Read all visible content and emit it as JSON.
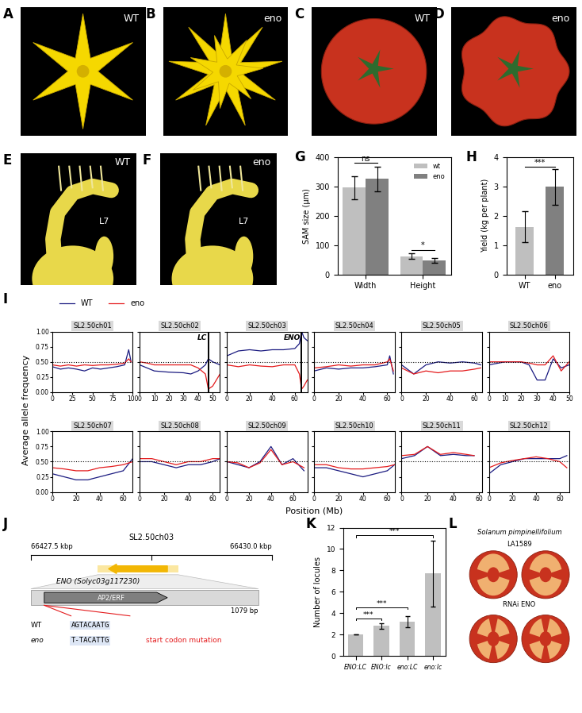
{
  "photos": {
    "flowers": [
      {
        "panel_label": "A",
        "label": "WT"
      },
      {
        "panel_label": "B",
        "label": "eno"
      }
    ],
    "fruits": [
      {
        "panel_label": "C",
        "label": "WT"
      },
      {
        "panel_label": "D",
        "label": "eno"
      }
    ],
    "meristems": [
      {
        "panel_label": "E",
        "label": "WT",
        "leaf": "L7"
      },
      {
        "panel_label": "F",
        "label": "eno",
        "leaf": "L7"
      }
    ]
  },
  "chart_data": [
    {
      "type": "bar",
      "panel_label": "G",
      "categories": [
        "Width",
        "Height"
      ],
      "ylabel": "SAM size (μm)",
      "ylim": [
        0,
        400
      ],
      "yticks": [
        0,
        100,
        200,
        300,
        400
      ],
      "legend": "upper right",
      "series": [
        {
          "name": "wt",
          "color": "#bfbfbf",
          "values": [
            295,
            62
          ],
          "errors": [
            38,
            10
          ]
        },
        {
          "name": "eno",
          "color": "#808080",
          "values": [
            325,
            48
          ],
          "errors": [
            42,
            8
          ]
        }
      ],
      "significance": [
        {
          "category": "Width",
          "label": "ns"
        },
        {
          "category": "Height",
          "label": "*"
        }
      ]
    },
    {
      "type": "bar",
      "panel_label": "H",
      "categories": [
        "WT",
        "eno"
      ],
      "values": [
        1.62,
        2.98
      ],
      "errors": [
        0.52,
        0.6
      ],
      "colors": [
        "#bfbfbf",
        "#808080"
      ],
      "ylabel": "Yield (kg per plant)",
      "ylim": [
        0,
        4
      ],
      "yticks": [
        0,
        1,
        2,
        3,
        4
      ],
      "comparisons": [
        {
          "from": "WT",
          "to": "eno",
          "label": "***"
        }
      ]
    },
    {
      "type": "line",
      "panel_label": "I",
      "ylabel": "Average allele frequency",
      "xlabel": "Position (Mb)",
      "legend": "upper left",
      "reference_line": 0.5,
      "ylim": [
        0,
        1
      ],
      "yticks": [
        {
          "value": 0,
          "label": "0.00"
        },
        {
          "value": 0.25,
          "label": "0.25"
        },
        {
          "value": 0.5,
          "label": "0.50"
        },
        {
          "value": 0.75,
          "label": "0.75"
        },
        {
          "value": 1,
          "label": "1.00"
        }
      ],
      "subplots": [
        {
          "title": "SL2.50ch01",
          "xlim": [
            0,
            100
          ],
          "xticks": [
            0,
            25,
            50,
            75,
            100
          ],
          "x": [
            0,
            10,
            20,
            30,
            40,
            50,
            60,
            70,
            80,
            90,
            95,
            98
          ],
          "series": [
            {
              "name": "WT",
              "color": "#1a1a80",
              "values": [
                0.42,
                0.38,
                0.4,
                0.38,
                0.35,
                0.4,
                0.38,
                0.4,
                0.42,
                0.45,
                0.7,
                0.5
              ]
            },
            {
              "name": "eno",
              "color": "#e41a1c",
              "values": [
                0.45,
                0.43,
                0.45,
                0.43,
                0.45,
                0.44,
                0.45,
                0.45,
                0.46,
                0.48,
                0.55,
                0.5
              ]
            }
          ]
        },
        {
          "title": "SL2.50ch02",
          "xlim": [
            0,
            55
          ],
          "xticks": [
            0,
            10,
            20,
            30,
            40,
            50
          ],
          "tick_labels": "x",
          "x": [
            0,
            5,
            10,
            20,
            30,
            35,
            40,
            45,
            47,
            50,
            55
          ],
          "series": [
            {
              "name": "WT",
              "color": "#1a1a80",
              "values": [
                0.45,
                0.4,
                0.35,
                0.33,
                0.32,
                0.3,
                0.35,
                0.45,
                0.55,
                0.5,
                0.45
              ]
            },
            {
              "name": "eno",
              "color": "#e41a1c",
              "values": [
                0.5,
                0.48,
                0.45,
                0.45,
                0.45,
                0.45,
                0.4,
                0.3,
                0.05,
                0.1,
                0.3
              ]
            }
          ],
          "markers": [
            {
              "x": 47,
              "label": "LC"
            }
          ]
        },
        {
          "title": "SL2.50ch03",
          "xlim": [
            0,
            71
          ],
          "xticks": [
            0,
            20,
            40,
            60
          ],
          "tick_labels": "x",
          "x": [
            0,
            10,
            20,
            30,
            40,
            50,
            60,
            64,
            66,
            68,
            71
          ],
          "series": [
            {
              "name": "WT",
              "color": "#1a1a80",
              "values": [
                0.6,
                0.68,
                0.7,
                0.68,
                0.7,
                0.7,
                0.72,
                0.8,
                1.0,
                0.9,
                0.85
              ]
            },
            {
              "name": "eno",
              "color": "#e41a1c",
              "values": [
                0.45,
                0.42,
                0.45,
                0.43,
                0.42,
                0.45,
                0.45,
                0.3,
                0.05,
                0.1,
                0.2
              ]
            }
          ],
          "markers": [
            {
              "x": 66,
              "label": "ENO"
            }
          ]
        },
        {
          "title": "SL2.50ch04",
          "xlim": [
            0,
            66
          ],
          "xticks": [
            0,
            20,
            40,
            60
          ],
          "tick_labels": "x",
          "x": [
            0,
            10,
            20,
            30,
            40,
            50,
            60,
            62,
            65
          ],
          "series": [
            {
              "name": "WT",
              "color": "#1a1a80",
              "values": [
                0.35,
                0.4,
                0.38,
                0.4,
                0.4,
                0.42,
                0.45,
                0.6,
                0.3
              ]
            },
            {
              "name": "eno",
              "color": "#e41a1c",
              "values": [
                0.4,
                0.42,
                0.45,
                0.43,
                0.45,
                0.45,
                0.5,
                0.55,
                0.35
              ]
            }
          ]
        },
        {
          "title": "SL2.50ch05",
          "xlim": [
            0,
            66
          ],
          "xticks": [
            0,
            20,
            40,
            60
          ],
          "tick_labels": "x",
          "x": [
            0,
            10,
            20,
            30,
            40,
            50,
            60,
            65
          ],
          "series": [
            {
              "name": "WT",
              "color": "#1a1a80",
              "values": [
                0.45,
                0.3,
                0.45,
                0.5,
                0.48,
                0.5,
                0.48,
                0.45
              ]
            },
            {
              "name": "eno",
              "color": "#e41a1c",
              "values": [
                0.4,
                0.3,
                0.35,
                0.32,
                0.35,
                0.35,
                0.38,
                0.4
              ]
            }
          ]
        },
        {
          "title": "SL2.50ch06",
          "xlim": [
            0,
            50
          ],
          "xticks": [
            0,
            10,
            20,
            30,
            40,
            50
          ],
          "tick_labels": "x",
          "x": [
            0,
            10,
            20,
            25,
            30,
            35,
            40,
            45,
            50
          ],
          "series": [
            {
              "name": "WT",
              "color": "#1a1a80",
              "values": [
                0.45,
                0.5,
                0.5,
                0.45,
                0.2,
                0.2,
                0.55,
                0.4,
                0.45
              ]
            },
            {
              "name": "eno",
              "color": "#e41a1c",
              "values": [
                0.5,
                0.5,
                0.5,
                0.48,
                0.45,
                0.45,
                0.6,
                0.35,
                0.5
              ]
            }
          ]
        },
        {
          "title": "SL2.50ch07",
          "xlim": [
            0,
            68
          ],
          "xticks": [
            0,
            20,
            40,
            60
          ],
          "x": [
            0,
            10,
            20,
            30,
            40,
            50,
            60,
            68
          ],
          "series": [
            {
              "name": "WT",
              "color": "#1a1a80",
              "values": [
                0.3,
                0.25,
                0.2,
                0.2,
                0.25,
                0.3,
                0.35,
                0.55
              ]
            },
            {
              "name": "eno",
              "color": "#e41a1c",
              "values": [
                0.4,
                0.38,
                0.35,
                0.35,
                0.4,
                0.42,
                0.45,
                0.5
              ]
            }
          ]
        },
        {
          "title": "SL2.50ch08",
          "xlim": [
            0,
            66
          ],
          "xticks": [
            0,
            20,
            40,
            60
          ],
          "tick_labels": "x",
          "x": [
            0,
            10,
            20,
            30,
            40,
            50,
            60,
            66
          ],
          "series": [
            {
              "name": "WT",
              "color": "#1a1a80",
              "values": [
                0.5,
                0.5,
                0.45,
                0.4,
                0.45,
                0.45,
                0.5,
                0.55
              ]
            },
            {
              "name": "eno",
              "color": "#e41a1c",
              "values": [
                0.55,
                0.55,
                0.5,
                0.45,
                0.5,
                0.5,
                0.55,
                0.55
              ]
            }
          ]
        },
        {
          "title": "SL2.50ch09",
          "xlim": [
            0,
            73
          ],
          "xticks": [
            0,
            20,
            40,
            60
          ],
          "tick_labels": "x",
          "x": [
            0,
            10,
            20,
            30,
            40,
            50,
            60,
            70
          ],
          "series": [
            {
              "name": "WT",
              "color": "#1a1a80",
              "values": [
                0.5,
                0.45,
                0.4,
                0.5,
                0.75,
                0.45,
                0.55,
                0.35
              ]
            },
            {
              "name": "eno",
              "color": "#e41a1c",
              "values": [
                0.5,
                0.48,
                0.4,
                0.48,
                0.7,
                0.45,
                0.5,
                0.4
              ]
            }
          ]
        },
        {
          "title": "SL2.50ch10",
          "xlim": [
            0,
            66
          ],
          "xticks": [
            0,
            20,
            40,
            60
          ],
          "tick_labels": "x",
          "x": [
            0,
            10,
            20,
            30,
            40,
            50,
            60,
            66
          ],
          "series": [
            {
              "name": "WT",
              "color": "#1a1a80",
              "values": [
                0.4,
                0.4,
                0.35,
                0.3,
                0.25,
                0.3,
                0.35,
                0.45
              ]
            },
            {
              "name": "eno",
              "color": "#e41a1c",
              "values": [
                0.45,
                0.45,
                0.4,
                0.38,
                0.38,
                0.4,
                0.42,
                0.45
              ]
            }
          ]
        },
        {
          "title": "SL2.50ch11",
          "xlim": [
            0,
            62
          ],
          "xticks": [
            0,
            20,
            40,
            60
          ],
          "tick_labels": "x",
          "x": [
            0,
            10,
            20,
            30,
            40,
            50,
            56
          ],
          "series": [
            {
              "name": "WT",
              "color": "#1a1a80",
              "values": [
                0.55,
                0.6,
                0.75,
                0.6,
                0.62,
                0.6,
                0.6
              ]
            },
            {
              "name": "eno",
              "color": "#e41a1c",
              "values": [
                0.6,
                0.62,
                0.75,
                0.62,
                0.65,
                0.62,
                0.6
              ]
            }
          ]
        },
        {
          "title": "SL2.50ch12",
          "xlim": [
            0,
            68
          ],
          "xticks": [
            0,
            20,
            40,
            60
          ],
          "tick_labels": "x",
          "x": [
            0,
            10,
            20,
            30,
            40,
            50,
            60,
            66
          ],
          "series": [
            {
              "name": "WT",
              "color": "#1a1a80",
              "values": [
                0.3,
                0.45,
                0.5,
                0.55,
                0.55,
                0.55,
                0.55,
                0.6
              ]
            },
            {
              "name": "eno",
              "color": "#e41a1c",
              "values": [
                0.4,
                0.48,
                0.52,
                0.55,
                0.58,
                0.55,
                0.5,
                0.4
              ]
            }
          ]
        }
      ]
    },
    {
      "type": "bar",
      "panel_label": "K",
      "categories": [
        "ENO:LC",
        "ENO:lc",
        "eno:LC",
        "eno:lc"
      ],
      "values": [
        2.0,
        2.8,
        3.2,
        7.7
      ],
      "errors": [
        0,
        0.25,
        0.5,
        3.1
      ],
      "color": "#bfbfbf",
      "ylabel": "Number of locules",
      "ylim": [
        0,
        12
      ],
      "yticks": [
        0,
        2,
        4,
        6,
        8,
        10,
        12
      ],
      "comparisons": [
        {
          "from": "ENO:LC",
          "to": "ENO:lc",
          "label": "***"
        },
        {
          "from": "ENO:LC",
          "to": "eno:LC",
          "label": "***"
        },
        {
          "from": "ENO:LC",
          "to": "eno:lc",
          "label": "***"
        }
      ]
    }
  ],
  "diagram": {
    "panel_label": "J",
    "title": "SL2.50ch03",
    "start": "66427.5 kbp",
    "end": "66430.0 kbp",
    "gene": "ENO (Solyc03g117230)",
    "domain": "AP2/ERF",
    "length": "1079 bp",
    "sequences": [
      {
        "label": "WT",
        "seq": "AGTACAATG"
      },
      {
        "label": "eno",
        "seq": "T-TACATTG"
      }
    ],
    "note": "start codon mutation"
  },
  "photo_L": {
    "panel_label": "L",
    "top": [
      "Solanum pimpinellifolium",
      "LA1589"
    ],
    "bottom": "RNAi ENO"
  }
}
